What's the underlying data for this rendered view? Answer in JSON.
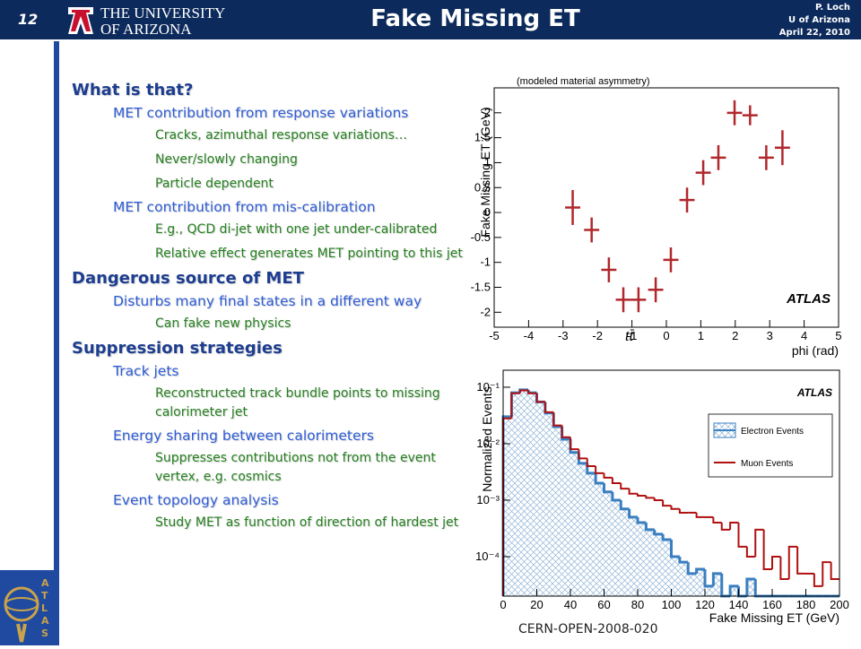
{
  "header": {
    "slide_number": "12",
    "university_line1": "THE UNIVERSITY",
    "university_line2": "OF ARIZONA",
    "title": "Fake Missing ET",
    "author": "P. Loch",
    "affiliation": "U of Arizona",
    "date": "April 22, 2010"
  },
  "outline": [
    {
      "text": "What is that?",
      "children": [
        {
          "text": "MET contribution from response variations",
          "children": [
            {
              "text": "Cracks, azimuthal response variations…"
            },
            {
              "text": "Never/slowly changing"
            },
            {
              "text": "Particle dependent"
            }
          ]
        },
        {
          "text": "MET contribution from mis-calibration",
          "children": [
            {
              "text": "E.g., QCD di-jet with one jet under-calibrated"
            },
            {
              "text": "Relative effect generates MET pointing to this jet"
            }
          ]
        }
      ]
    },
    {
      "text": "Dangerous source of MET",
      "children": [
        {
          "text": "Disturbs many final states in a different way",
          "children": [
            {
              "text": "Can fake new physics"
            }
          ]
        }
      ]
    },
    {
      "text": "Suppression strategies",
      "children": [
        {
          "text": "Track jets",
          "children": [
            {
              "text": "Reconstructed track bundle points to missing calorimeter jet"
            }
          ]
        },
        {
          "text": "Energy sharing between calorimeters",
          "children": [
            {
              "text": "Suppresses contributions not from the event vertex, e.g. cosmics"
            }
          ]
        },
        {
          "text": "Event topology analysis",
          "children": [
            {
              "text": "Study MET as function of direction of hardest jet"
            }
          ]
        }
      ]
    }
  ],
  "logo_text": "ATLAS",
  "source": "CERN-OPEN-2008-020",
  "chart_data": [
    {
      "type": "scatter",
      "annotation": "(modeled material asymmetry)",
      "label": "ATLAS",
      "process": "tt̄",
      "xlabel": "phi (rad)",
      "ylabel": "Fake Missing ET (GeV)",
      "color": "#b0282c",
      "x": [
        -2.72,
        -2.17,
        -1.67,
        -1.25,
        -0.81,
        -0.31,
        0.13,
        0.6,
        1.07,
        1.51,
        1.98,
        2.43,
        2.9,
        3.37
      ],
      "values": [
        0.1,
        -0.35,
        -1.15,
        -1.75,
        -1.75,
        -1.55,
        -0.95,
        0.25,
        0.8,
        1.1,
        2.0,
        1.95,
        1.1,
        1.3
      ],
      "yerr": [
        0.35,
        0.25,
        0.25,
        0.25,
        0.25,
        0.25,
        0.25,
        0.25,
        0.25,
        0.25,
        0.25,
        0.2,
        0.25,
        0.35
      ],
      "xerr": [
        0.22,
        0.22,
        0.22,
        0.22,
        0.22,
        0.22,
        0.22,
        0.22,
        0.22,
        0.22,
        0.22,
        0.22,
        0.22,
        0.22
      ],
      "xlim": [
        -5,
        5
      ],
      "ylim": [
        -2.3,
        2.5
      ],
      "xticks": [
        -5,
        -4,
        -3,
        -2,
        -1,
        0,
        1,
        2,
        3,
        4,
        5
      ],
      "yticks": [
        -2,
        -1.5,
        -1,
        -0.5,
        0,
        0.5,
        1,
        1.5,
        2
      ]
    },
    {
      "type": "histogram",
      "label": "ATLAS",
      "xlabel": "Fake Missing ET (GeV)",
      "ylabel": "Normalized Events",
      "log_y": true,
      "bins": [
        0,
        5,
        10,
        15,
        20,
        25,
        30,
        35,
        40,
        45,
        50,
        55,
        60,
        65,
        70,
        75,
        80,
        85,
        90,
        95,
        100,
        105,
        110,
        115,
        120,
        125,
        130,
        135,
        140,
        145,
        150,
        155,
        160,
        165,
        170,
        175,
        180,
        185,
        190,
        195,
        200
      ],
      "series": [
        {
          "name": "Electron Events",
          "color": "#3a7fc0",
          "values": [
            0.03,
            0.08,
            0.09,
            0.08,
            0.055,
            0.035,
            0.02,
            0.012,
            0.007,
            0.0045,
            0.003,
            0.002,
            0.0014,
            0.001,
            0.0007,
            0.0005,
            0.0004,
            0.0003,
            0.00025,
            0.0002,
            0.0001,
            8e-05,
            5e-05,
            6e-05,
            3e-05,
            5e-05,
            null,
            3e-05,
            null,
            4e-05,
            null,
            null,
            null,
            null,
            null,
            null,
            null,
            null,
            null,
            null
          ]
        },
        {
          "name": "Muon Events",
          "color": "#b01010",
          "values": [
            0.028,
            0.078,
            0.088,
            0.078,
            0.055,
            0.036,
            0.021,
            0.013,
            0.008,
            0.0055,
            0.004,
            0.003,
            0.0025,
            0.002,
            0.0016,
            0.0013,
            0.0012,
            0.0011,
            0.001,
            0.0008,
            0.0007,
            0.0006,
            0.0006,
            0.0005,
            0.0005,
            0.0004,
            0.0003,
            0.0004,
            0.00015,
            0.0001,
            0.0003,
            6e-05,
            0.0001,
            4e-05,
            0.00015,
            5e-05,
            5e-05,
            3e-05,
            8e-05,
            4e-05
          ]
        }
      ],
      "xlim": [
        0,
        200
      ],
      "ylim": [
        2e-05,
        0.2
      ],
      "xticks": [
        0,
        20,
        40,
        60,
        80,
        100,
        120,
        140,
        160,
        180,
        200
      ],
      "yticks": [
        {
          "value": 0.1,
          "label": "10⁻¹"
        },
        {
          "value": 0.01,
          "label": "10⁻²"
        },
        {
          "value": 0.001,
          "label": "10⁻³"
        },
        {
          "value": 0.0001,
          "label": "10⁻⁴"
        }
      ],
      "legend": "upper right"
    }
  ]
}
